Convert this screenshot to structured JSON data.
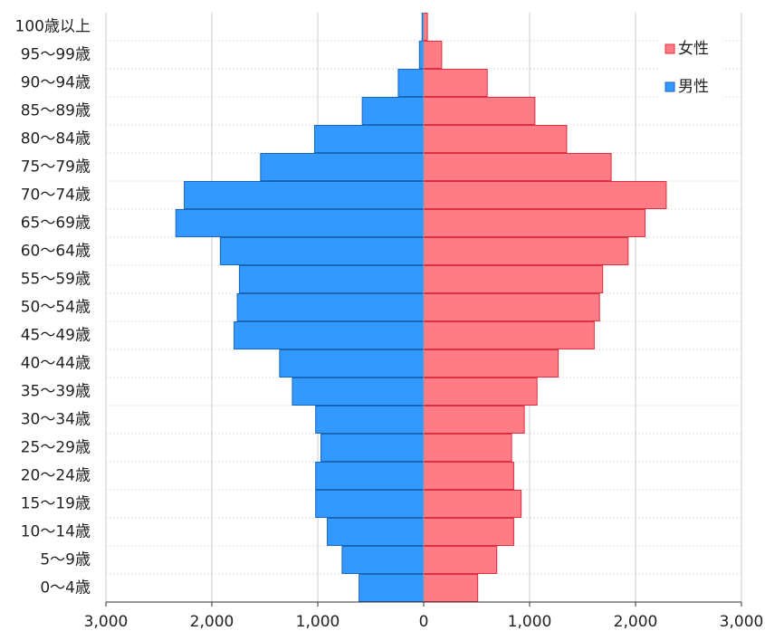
{
  "chart_data": {
    "type": "pyramid",
    "categories": [
      "100歳以上",
      "95～99歳",
      "90～94歳",
      "85～89歳",
      "80～84歳",
      "75～79歳",
      "70～74歳",
      "65～69歳",
      "60～64歳",
      "55～59歳",
      "50～54歳",
      "45～49歳",
      "40～44歳",
      "35～39歳",
      "30～34歳",
      "25～29歳",
      "20～24歳",
      "15～19歳",
      "10～14歳",
      "5～9歳",
      "0～4歳"
    ],
    "series": [
      {
        "name": "女性",
        "color": "#ff7b86",
        "values": [
          35,
          170,
          600,
          1050,
          1350,
          1770,
          2290,
          2090,
          1930,
          1690,
          1660,
          1610,
          1270,
          1070,
          950,
          830,
          850,
          920,
          850,
          690,
          510
        ]
      },
      {
        "name": "男性",
        "color": "#3399ff",
        "values": [
          15,
          40,
          240,
          580,
          1030,
          1540,
          2260,
          2340,
          1920,
          1740,
          1760,
          1790,
          1360,
          1240,
          1020,
          970,
          1020,
          1020,
          910,
          770,
          610
        ]
      }
    ],
    "xlim": [
      -3000,
      3000
    ],
    "xticks": [
      {
        "value": -3000,
        "label": "3,000"
      },
      {
        "value": -2000,
        "label": "2,000"
      },
      {
        "value": -1000,
        "label": "1,000"
      },
      0,
      {
        "value": 1000,
        "label": "1,000"
      },
      {
        "value": 2000,
        "label": "2,000"
      },
      {
        "value": 3000,
        "label": "3,000"
      }
    ],
    "grid": true,
    "legend": "upper right"
  }
}
